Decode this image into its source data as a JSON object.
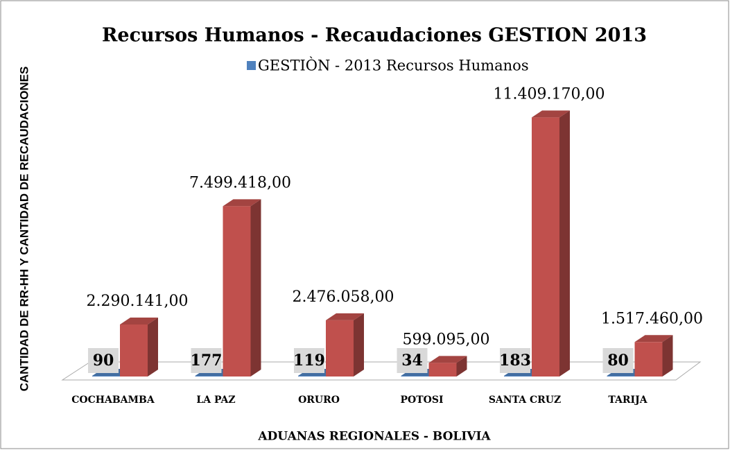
{
  "chart_data": {
    "type": "bar3d",
    "title": "Recursos Humanos - Recaudaciones GESTION 2013",
    "y_label": "CANTIDAD DE RR-HH Y CANTIDAD DE RECAUDACIONES",
    "x_label": "ADUANAS REGIONALES - BOLIVIA",
    "categories": [
      "COCHABAMBA",
      "LA PAZ",
      "ORURO",
      "POTOSI",
      "SANTA CRUZ",
      "TARIJA"
    ],
    "series": [
      {
        "name": "GESTIÒN - 2013 Recursos Humanos",
        "color": "#4f81bd",
        "values": [
          90,
          177,
          119,
          34,
          183,
          80
        ]
      },
      {
        "color": "#c0504d",
        "values": [
          2290141,
          7499418,
          2476058,
          599095,
          11409170,
          1517460
        ],
        "value_labels": [
          "2.290.141,00",
          "7.499.418,00",
          "2.476.058,00",
          "599.095,00",
          "11.409.170,00",
          "1.517.460,00"
        ]
      }
    ],
    "ylim": [
      0,
      12000000
    ]
  }
}
